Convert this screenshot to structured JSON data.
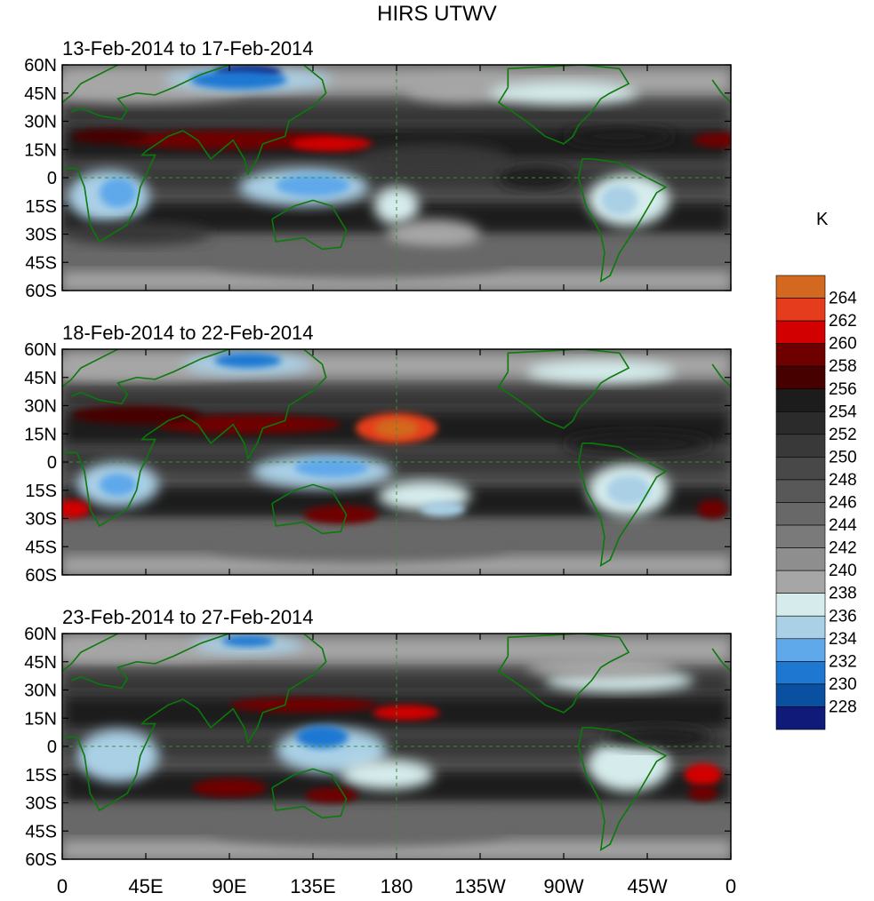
{
  "title": "HIRS UTWV",
  "unit": "K",
  "panels": [
    {
      "label": "13-Feb-2014 to 17-Feb-2014"
    },
    {
      "label": "18-Feb-2014 to 22-Feb-2014"
    },
    {
      "label": "23-Feb-2014 to 27-Feb-2014"
    }
  ],
  "lat_ticks": [
    "60N",
    "45N",
    "30N",
    "15N",
    "0",
    "15S",
    "30S",
    "45S",
    "60S"
  ],
  "lon_ticks": [
    "0",
    "45E",
    "90E",
    "135E",
    "180",
    "135W",
    "90W",
    "45W",
    "0"
  ],
  "colorbar": {
    "labels": [
      "264",
      "262",
      "260",
      "258",
      "256",
      "254",
      "252",
      "250",
      "248",
      "246",
      "244",
      "242",
      "240",
      "238",
      "236",
      "234",
      "232",
      "230",
      "228"
    ],
    "colors": [
      "#d2691e",
      "#e63c1e",
      "#d20000",
      "#6e0000",
      "#460000",
      "#1c1c1c",
      "#2b2b2b",
      "#393939",
      "#484848",
      "#585858",
      "#686868",
      "#7a7a7a",
      "#8e8e8e",
      "#a6a6a6",
      "#d6ecec",
      "#aad0e6",
      "#5fa8ea",
      "#1e78d2",
      "#0a50a0",
      "#101a78"
    ]
  },
  "features": {
    "map_colors": {
      "coast": "#0a7a0a",
      "dashed_line": "#3c8c3c"
    }
  }
}
